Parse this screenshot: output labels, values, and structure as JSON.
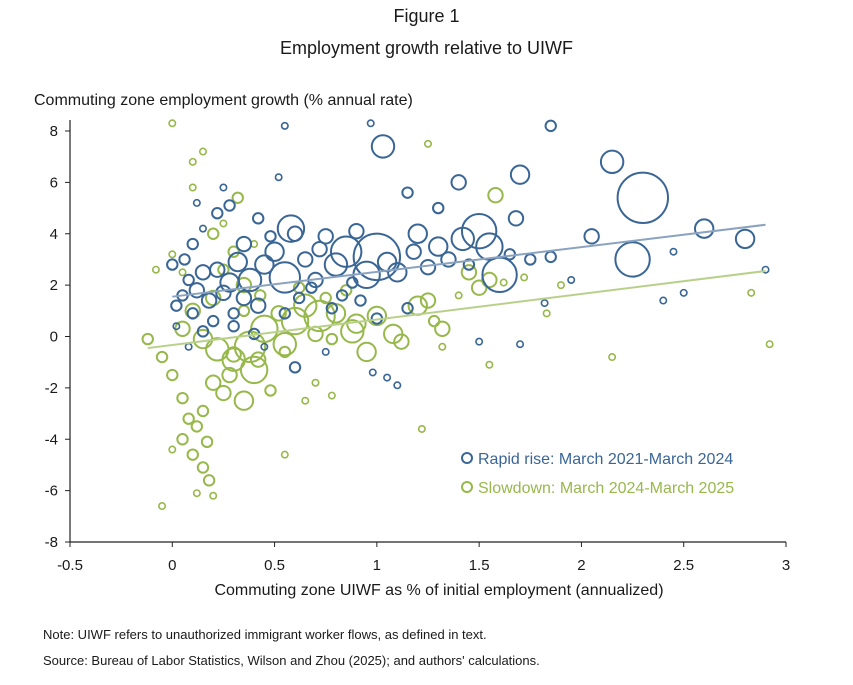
{
  "figure_label": "Figure 1",
  "title": "Employment growth relative to UIWF",
  "ylabel": "Commuting zone employment growth (% annual rate)",
  "xlabel": "Commuting zone UIWF as % of initial employment (annualized)",
  "note": "Note: UIWF refers to unauthorized immigrant worker flows, as defined in text.",
  "source": "Source: Bureau of Labor Statistics, Wilson and Zhou (2025); and authors' calculations.",
  "colors": {
    "rapid_rise": "#3a6696",
    "slowdown": "#97b84a",
    "trend_rise": "#8aa3c0",
    "trend_slow": "#b9d08a"
  },
  "chart_data": {
    "type": "scatter",
    "x_ticks": [
      "-0.5",
      "0",
      "0.5",
      "1",
      "1.5",
      "2",
      "2.5",
      "3"
    ],
    "y_ticks": [
      "8",
      "6",
      "4",
      "2",
      "0",
      "-2",
      "-4",
      "-6",
      "-8"
    ],
    "xlim": [
      -0.5,
      3
    ],
    "ylim": [
      -8,
      8.5
    ],
    "grid": false,
    "legend_position": "lower-right",
    "note": "Bubble size proportional to commuting zone employment; small points shown are a representative sample.",
    "series": [
      {
        "name": "Rapid rise: March 2021-March 2024",
        "trend": [
          [
            0,
            1.55
          ],
          [
            2.9,
            4.35
          ]
        ],
        "points": [
          [
            0.55,
            8.2,
            1
          ],
          [
            0.97,
            8.3,
            1
          ],
          [
            1.85,
            8.2,
            2
          ],
          [
            1.03,
            7.4,
            5
          ],
          [
            2.15,
            6.8,
            5
          ],
          [
            2.3,
            5.4,
            12
          ],
          [
            1.7,
            6.3,
            4
          ],
          [
            1.4,
            6.0,
            3
          ],
          [
            1.15,
            5.6,
            2
          ],
          [
            1.3,
            5.0,
            2
          ],
          [
            1.68,
            4.6,
            3
          ],
          [
            2.6,
            4.2,
            4
          ],
          [
            2.8,
            3.8,
            4
          ],
          [
            2.05,
            3.9,
            3
          ],
          [
            2.25,
            3.0,
            8
          ],
          [
            1.5,
            4.1,
            8
          ],
          [
            1.55,
            3.5,
            6
          ],
          [
            1.42,
            3.8,
            5
          ],
          [
            1.3,
            3.5,
            4
          ],
          [
            1.6,
            2.4,
            8
          ],
          [
            1.2,
            4.0,
            4
          ],
          [
            1.0,
            3.1,
            11
          ],
          [
            0.95,
            2.4,
            6
          ],
          [
            0.85,
            3.3,
            7
          ],
          [
            0.8,
            2.8,
            5
          ],
          [
            0.9,
            4.1,
            3
          ],
          [
            0.75,
            3.9,
            3
          ],
          [
            0.6,
            4.0,
            3
          ],
          [
            0.58,
            4.2,
            6
          ],
          [
            0.5,
            3.3,
            4
          ],
          [
            0.55,
            2.3,
            7
          ],
          [
            0.45,
            2.8,
            4
          ],
          [
            0.38,
            2.2,
            5
          ],
          [
            0.32,
            2.9,
            4
          ],
          [
            0.28,
            2.1,
            4
          ],
          [
            0.22,
            2.6,
            3
          ],
          [
            0.15,
            2.5,
            3
          ],
          [
            0.12,
            1.8,
            3
          ],
          [
            0.08,
            2.2,
            2
          ],
          [
            0.05,
            1.6,
            2
          ],
          [
            0.18,
            1.4,
            3
          ],
          [
            0.25,
            1.7,
            3
          ],
          [
            0.35,
            1.5,
            3
          ],
          [
            0.42,
            1.2,
            3
          ],
          [
            0.3,
            0.9,
            2
          ],
          [
            0.2,
            0.6,
            2
          ],
          [
            0.1,
            0.9,
            2
          ],
          [
            0.02,
            1.2,
            2
          ],
          [
            0.06,
            3.0,
            2
          ],
          [
            0.1,
            3.6,
            2
          ],
          [
            0.15,
            4.2,
            1
          ],
          [
            0.22,
            4.8,
            2
          ],
          [
            0.28,
            5.1,
            2
          ],
          [
            0.35,
            3.6,
            3
          ],
          [
            0.42,
            4.6,
            2
          ],
          [
            0.48,
            3.9,
            2
          ],
          [
            0.65,
            3.0,
            3
          ],
          [
            0.7,
            2.2,
            3
          ],
          [
            0.72,
            3.4,
            3
          ],
          [
            0.68,
            1.9,
            2
          ],
          [
            0.62,
            1.5,
            2
          ],
          [
            0.55,
            0.9,
            2
          ],
          [
            0.6,
            -1.2,
            2
          ],
          [
            0.52,
            6.2,
            1
          ],
          [
            0.25,
            5.8,
            1
          ],
          [
            0.12,
            5.2,
            1
          ],
          [
            0.0,
            2.8,
            2
          ],
          [
            0.02,
            0.4,
            1
          ],
          [
            0.08,
            -0.4,
            1
          ],
          [
            0.15,
            0.2,
            2
          ],
          [
            0.3,
            0.4,
            2
          ],
          [
            0.4,
            0.1,
            2
          ],
          [
            0.78,
            1.1,
            2
          ],
          [
            0.83,
            1.6,
            2
          ],
          [
            0.88,
            2.1,
            2
          ],
          [
            1.05,
            2.9,
            4
          ],
          [
            1.1,
            2.5,
            4
          ],
          [
            1.18,
            3.3,
            3
          ],
          [
            1.25,
            2.7,
            3
          ],
          [
            1.35,
            3.0,
            3
          ],
          [
            1.45,
            2.8,
            2
          ],
          [
            1.65,
            3.2,
            2
          ],
          [
            1.75,
            3.0,
            2
          ],
          [
            1.85,
            3.1,
            2
          ],
          [
            1.95,
            2.2,
            1
          ],
          [
            1.82,
            1.3,
            1
          ],
          [
            2.45,
            3.3,
            1
          ],
          [
            2.5,
            1.7,
            1
          ],
          [
            2.4,
            1.4,
            1
          ],
          [
            2.9,
            2.6,
            1
          ],
          [
            1.05,
            -1.6,
            1
          ],
          [
            1.1,
            -1.9,
            1
          ],
          [
            0.98,
            -1.4,
            1
          ],
          [
            0.75,
            -0.6,
            1
          ],
          [
            0.45,
            -0.4,
            1
          ],
          [
            1.5,
            -0.2,
            1
          ],
          [
            1.7,
            -0.3,
            1
          ],
          [
            1.0,
            0.7,
            2
          ],
          [
            1.15,
            1.1,
            2
          ],
          [
            0.92,
            1.4,
            2
          ]
        ]
      },
      {
        "name": "Slowdown: March 2024-March 2025",
        "trend": [
          [
            -0.12,
            -0.45
          ],
          [
            2.9,
            2.55
          ]
        ],
        "points": [
          [
            0.0,
            8.3,
            1
          ],
          [
            0.15,
            7.2,
            1
          ],
          [
            0.1,
            6.8,
            1
          ],
          [
            0.32,
            5.4,
            2
          ],
          [
            1.58,
            5.5,
            3
          ],
          [
            1.25,
            7.5,
            1
          ],
          [
            0.2,
            4.0,
            2
          ],
          [
            0.3,
            3.3,
            2
          ],
          [
            0.25,
            2.6,
            2
          ],
          [
            0.35,
            2.0,
            3
          ],
          [
            0.2,
            1.5,
            3
          ],
          [
            0.1,
            1.0,
            3
          ],
          [
            0.05,
            0.3,
            3
          ],
          [
            0.15,
            -0.1,
            4
          ],
          [
            0.22,
            -0.5,
            5
          ],
          [
            0.3,
            -0.9,
            5
          ],
          [
            0.4,
            -1.3,
            6
          ],
          [
            0.38,
            -0.4,
            7
          ],
          [
            0.45,
            0.3,
            6
          ],
          [
            0.55,
            -0.3,
            5
          ],
          [
            0.6,
            0.6,
            6
          ],
          [
            0.65,
            1.2,
            5
          ],
          [
            0.72,
            0.8,
            7
          ],
          [
            0.8,
            0.9,
            4
          ],
          [
            0.88,
            0.2,
            5
          ],
          [
            0.95,
            -0.6,
            4
          ],
          [
            0.9,
            0.5,
            4
          ],
          [
            1.0,
            0.8,
            4
          ],
          [
            1.08,
            0.1,
            4
          ],
          [
            1.12,
            -0.2,
            3
          ],
          [
            1.2,
            1.2,
            4
          ],
          [
            1.25,
            1.4,
            3
          ],
          [
            1.32,
            0.3,
            3
          ],
          [
            1.45,
            2.5,
            3
          ],
          [
            1.5,
            1.9,
            3
          ],
          [
            1.55,
            2.2,
            3
          ],
          [
            0.35,
            -2.5,
            4
          ],
          [
            0.25,
            -2.2,
            3
          ],
          [
            0.2,
            -1.8,
            3
          ],
          [
            0.15,
            -2.9,
            2
          ],
          [
            0.08,
            -3.2,
            2
          ],
          [
            0.05,
            -4.0,
            2
          ],
          [
            0.1,
            -4.6,
            2
          ],
          [
            0.15,
            -5.1,
            2
          ],
          [
            0.18,
            -5.6,
            2
          ],
          [
            0.12,
            -6.1,
            1
          ],
          [
            0.2,
            -6.2,
            1
          ],
          [
            -0.05,
            -6.6,
            1
          ],
          [
            0.0,
            -4.4,
            1
          ],
          [
            0.17,
            -4.1,
            2
          ],
          [
            0.12,
            -3.5,
            2
          ],
          [
            0.05,
            -2.4,
            2
          ],
          [
            0.0,
            -1.5,
            2
          ],
          [
            -0.05,
            -0.8,
            2
          ],
          [
            -0.12,
            -0.1,
            2
          ],
          [
            0.48,
            -2.1,
            2
          ],
          [
            0.55,
            -0.6,
            2
          ],
          [
            0.7,
            0.1,
            3
          ],
          [
            0.78,
            -0.1,
            2
          ],
          [
            0.3,
            -0.7,
            3
          ],
          [
            0.28,
            -1.5,
            3
          ],
          [
            0.42,
            -0.9,
            3
          ],
          [
            0.52,
            0.9,
            3
          ],
          [
            0.62,
            1.9,
            2
          ],
          [
            0.35,
            1.0,
            2
          ],
          [
            0.43,
            1.6,
            2
          ],
          [
            0.75,
            1.5,
            2
          ],
          [
            0.85,
            1.8,
            2
          ],
          [
            1.28,
            0.6,
            2
          ],
          [
            1.22,
            -3.6,
            1
          ],
          [
            0.55,
            -4.6,
            1
          ],
          [
            0.65,
            -2.5,
            1
          ],
          [
            0.7,
            -1.8,
            1
          ],
          [
            0.78,
            -2.3,
            1
          ],
          [
            2.83,
            1.7,
            1
          ],
          [
            2.92,
            -0.3,
            1
          ],
          [
            1.83,
            0.9,
            1
          ],
          [
            2.15,
            -0.8,
            1
          ],
          [
            1.55,
            -1.1,
            1
          ],
          [
            1.32,
            -0.4,
            1
          ],
          [
            1.4,
            1.6,
            1
          ],
          [
            1.62,
            2.1,
            1
          ],
          [
            1.72,
            2.3,
            1
          ],
          [
            1.9,
            2.0,
            1
          ],
          [
            0.05,
            2.5,
            1
          ],
          [
            0.0,
            3.2,
            1
          ],
          [
            -0.08,
            2.6,
            1
          ],
          [
            0.1,
            5.8,
            1
          ],
          [
            0.25,
            4.4,
            1
          ],
          [
            0.4,
            3.6,
            1
          ]
        ]
      }
    ]
  }
}
